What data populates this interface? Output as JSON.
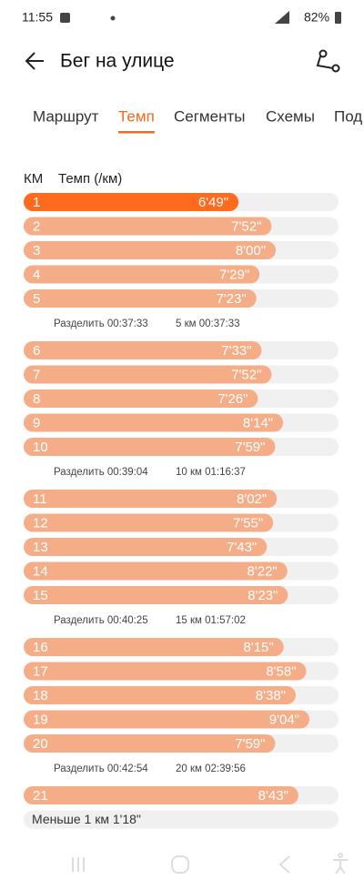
{
  "status_bar": {
    "time": "11:55",
    "battery": "82%"
  },
  "header": {
    "title": "Бег на улице"
  },
  "tabs": [
    "Маршрут",
    "Темп",
    "Сегменты",
    "Схемы",
    "Под"
  ],
  "table": {
    "columns": [
      "КМ",
      "Темп (/км)"
    ],
    "groups": [
      {
        "rows": [
          {
            "km": 1,
            "pace": {
              "value": 409,
              "label": "6'49\""
            }
          },
          {
            "km": 2,
            "pace": {
              "value": 472,
              "label": "7'52\""
            }
          },
          {
            "km": 3,
            "pace": {
              "value": 480,
              "label": "8'00\""
            }
          },
          {
            "km": 4,
            "pace": {
              "value": 449,
              "label": "7'29\""
            }
          },
          {
            "km": 5,
            "pace": {
              "value": 443,
              "label": "7'23\""
            }
          }
        ],
        "split": "Разделить 00:37:33",
        "total": "5 км 00:37:33"
      },
      {
        "rows": [
          {
            "km": 6,
            "pace": {
              "value": 453,
              "label": "7'33\""
            }
          },
          {
            "km": 7,
            "pace": {
              "value": 472,
              "label": "7'52\""
            }
          },
          {
            "km": 8,
            "pace": {
              "value": 446,
              "label": "7'26\""
            }
          },
          {
            "km": 9,
            "pace": {
              "value": 494,
              "label": "8'14\""
            }
          },
          {
            "km": 10,
            "pace": {
              "value": 479,
              "label": "7'59\""
            }
          }
        ],
        "split": "Разделить 00:39:04",
        "total": "10 км 01:16:37"
      },
      {
        "rows": [
          {
            "km": 11,
            "pace": {
              "value": 482,
              "label": "8'02\""
            }
          },
          {
            "km": 12,
            "pace": {
              "value": 475,
              "label": "7'55\""
            }
          },
          {
            "km": 13,
            "pace": {
              "value": 463,
              "label": "7'43\""
            }
          },
          {
            "km": 14,
            "pace": {
              "value": 502,
              "label": "8'22\""
            }
          },
          {
            "km": 15,
            "pace": {
              "value": 503,
              "label": "8'23\""
            }
          }
        ],
        "split": "Разделить 00:40:25",
        "total": "15 км 01:57:02"
      },
      {
        "rows": [
          {
            "km": 16,
            "pace": {
              "value": 495,
              "label": "8'15\""
            }
          },
          {
            "km": 17,
            "pace": {
              "value": 538,
              "label": "8'58\""
            }
          },
          {
            "km": 18,
            "pace": {
              "value": 518,
              "label": "8'38\""
            }
          },
          {
            "km": 19,
            "pace": {
              "value": 544,
              "label": "9'04\""
            }
          },
          {
            "km": 20,
            "pace": {
              "value": 479,
              "label": "7'59\""
            }
          }
        ],
        "split": "Разделить 00:42:54",
        "total": "20 км 02:39:56"
      },
      {
        "rows": [
          {
            "km": 21,
            "pace": {
              "value": 523,
              "label": "8'43\""
            }
          }
        ]
      }
    ],
    "remainder": "Меньше 1 км 1'18\""
  }
}
